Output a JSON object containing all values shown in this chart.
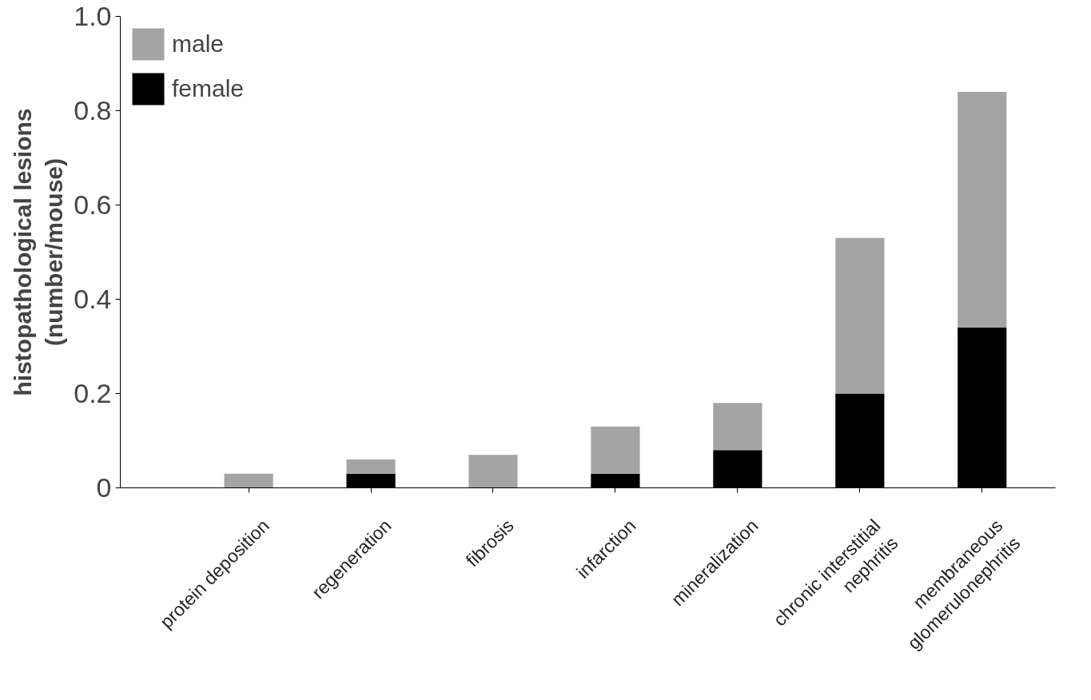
{
  "chart_data": {
    "type": "bar",
    "stacked": true,
    "ylabel": "histopathological lesions\n(number/mouse)",
    "categories": [
      "protein deposition",
      "regeneration",
      "fibrosis",
      "infarction",
      "mineralization",
      "chronic interstitial\nnephritis",
      "membraneous\nglomerulonephritis"
    ],
    "series": [
      {
        "name": "female",
        "color": "#000000",
        "values": [
          0,
          0.03,
          0,
          0.03,
          0.08,
          0.2,
          0.34
        ]
      },
      {
        "name": "male",
        "color": "#a4a4a4",
        "values": [
          0.03,
          0.03,
          0.07,
          0.1,
          0.1,
          0.33,
          0.5
        ]
      }
    ],
    "ylim": [
      0,
      1.0
    ],
    "yticks": [
      0,
      0.2,
      0.4,
      0.6,
      0.8,
      {
        "value": 1.0,
        "label": "1.0"
      }
    ],
    "grid": false,
    "legend": "top left"
  }
}
